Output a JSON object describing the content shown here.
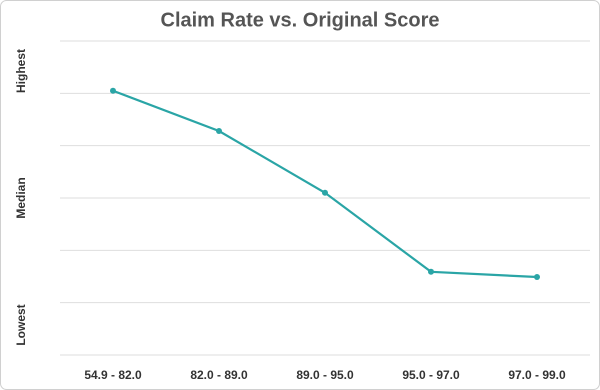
{
  "chart_data": {
    "type": "line",
    "title": "Claim Rate vs. Original Score",
    "categories": [
      "54.9 - 82.0",
      "82.0 - 89.0",
      "89.0 - 95.0",
      "95.0 - 97.0",
      "97.0 - 99.0"
    ],
    "values": [
      5.05,
      4.28,
      3.1,
      1.59,
      1.49
    ],
    "color": "#2aa5a6",
    "ylim": [
      0,
      6
    ],
    "yticks": [
      0,
      1,
      2,
      3,
      4,
      5,
      6
    ],
    "grid": true,
    "y_labels": [
      "Highest",
      "Median",
      "Lowest"
    ]
  }
}
